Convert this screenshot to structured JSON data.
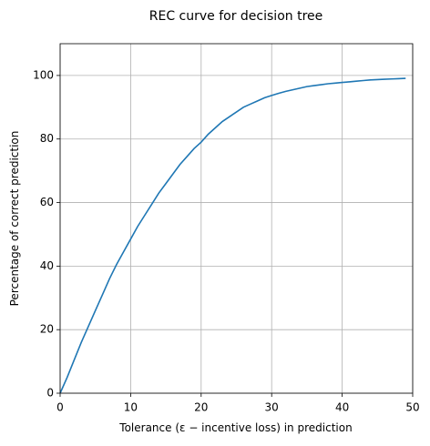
{
  "chart_data": {
    "type": "line",
    "title": "REC curve for decision tree",
    "xlabel": "Tolerance (ε − incentive loss) in prediction",
    "ylabel": "Percentage of correct prediction",
    "x": [
      0,
      1,
      2,
      3,
      4,
      5,
      6,
      7,
      8,
      9,
      10,
      11,
      12,
      13,
      14,
      15,
      16,
      17,
      18,
      19,
      20,
      21,
      22,
      23,
      24,
      25,
      26,
      27,
      28,
      29,
      30,
      31,
      32,
      33,
      34,
      35,
      36,
      37,
      38,
      39,
      40,
      41,
      42,
      43,
      44,
      45,
      46,
      47,
      48,
      49
    ],
    "series": [
      {
        "name": "REC",
        "color": "#1f77b4",
        "values": [
          0,
          5,
          10.5,
          16,
          21,
          26,
          31,
          36,
          40.5,
          44.5,
          48.5,
          52.5,
          56,
          59.5,
          63,
          66,
          69,
          72,
          74.5,
          77,
          79,
          81.5,
          83.5,
          85.5,
          87,
          88.5,
          90,
          91,
          92,
          93,
          93.7,
          94.4,
          95,
          95.5,
          96,
          96.5,
          96.8,
          97.1,
          97.4,
          97.6,
          97.8,
          98,
          98.2,
          98.4,
          98.6,
          98.7,
          98.8,
          98.9,
          99,
          99.1
        ]
      }
    ],
    "xlim": [
      0,
      50
    ],
    "xticks": [
      0,
      10,
      20,
      30,
      40,
      50
    ],
    "ylim": [
      0,
      110
    ],
    "yticks": [
      0,
      20,
      40,
      60,
      80,
      100
    ],
    "grid": true
  }
}
